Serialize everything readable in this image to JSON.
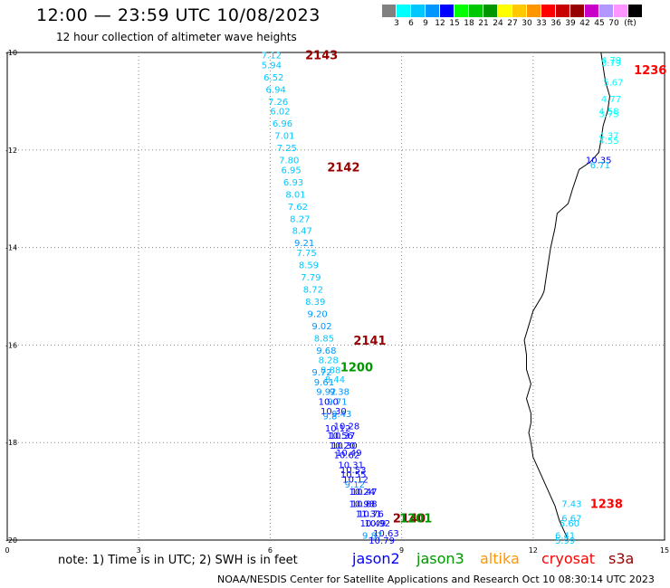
{
  "title": "12:00 — 23:59 UTC 10/08/2023",
  "subtitle": "12 hour collection of altimeter wave heights",
  "legend": {
    "colors": [
      "#808080",
      "#00ffff",
      "#00c8ff",
      "#0096ff",
      "#0000ff",
      "#00ff00",
      "#00c800",
      "#009600",
      "#ffff00",
      "#ffc800",
      "#ff9600",
      "#ff0000",
      "#c80000",
      "#960000",
      "#c800c8",
      "#b496ff",
      "#ff96ff",
      "#000000"
    ],
    "labels": [
      "3",
      "6",
      "9",
      "12",
      "15",
      "18",
      "21",
      "24",
      "27",
      "30",
      "33",
      "36",
      "39",
      "42",
      "45",
      "70",
      "(ft)"
    ]
  },
  "axes": {
    "x_ticks": [
      "0",
      "3",
      "6",
      "9",
      "12",
      "15"
    ],
    "y_ticks": [
      "-10",
      "-12",
      "-14",
      "-16",
      "-18",
      "-20"
    ]
  },
  "chart_data": {
    "type": "scatter",
    "x_range": [
      0,
      15
    ],
    "y_range": [
      -20,
      -10
    ],
    "grid": true,
    "track_labels": [
      {
        "text": "2143",
        "x": 6.8,
        "y": -10.05,
        "color": "#960000"
      },
      {
        "text": "2142",
        "x": 7.3,
        "y": -12.35,
        "color": "#960000"
      },
      {
        "text": "2141",
        "x": 7.9,
        "y": -15.9,
        "color": "#960000"
      },
      {
        "text": "1200",
        "x": 7.6,
        "y": -16.45,
        "color": "#009600"
      },
      {
        "text": "2140",
        "x": 8.8,
        "y": -19.55,
        "color": "#960000"
      },
      {
        "text": "1201",
        "x": 8.95,
        "y": -19.55,
        "color": "#009600"
      },
      {
        "text": "1236",
        "x": 14.3,
        "y": -10.35,
        "color": "#ff0000"
      },
      {
        "text": "1238",
        "x": 13.3,
        "y": -19.25,
        "color": "#ff0000"
      }
    ],
    "points": [
      {
        "x": 5.8,
        "y": -10.05,
        "v": "7.12",
        "color": "#00c8ff"
      },
      {
        "x": 5.8,
        "y": -10.25,
        "v": "5.94",
        "color": "#00c8ff"
      },
      {
        "x": 5.85,
        "y": -10.5,
        "v": "6.52",
        "color": "#00c8ff"
      },
      {
        "x": 5.9,
        "y": -10.75,
        "v": "6.94",
        "color": "#00c8ff"
      },
      {
        "x": 5.95,
        "y": -11.0,
        "v": "7.26",
        "color": "#00c8ff"
      },
      {
        "x": 6.0,
        "y": -11.2,
        "v": "6.02",
        "color": "#00c8ff"
      },
      {
        "x": 6.05,
        "y": -11.45,
        "v": "6.96",
        "color": "#00c8ff"
      },
      {
        "x": 6.1,
        "y": -11.7,
        "v": "7.01",
        "color": "#00c8ff"
      },
      {
        "x": 6.15,
        "y": -11.95,
        "v": "7.25",
        "color": "#00c8ff"
      },
      {
        "x": 6.2,
        "y": -12.2,
        "v": "7.80",
        "color": "#00c8ff"
      },
      {
        "x": 6.25,
        "y": -12.4,
        "v": "6.95",
        "color": "#00c8ff"
      },
      {
        "x": 6.3,
        "y": -12.65,
        "v": "6.93",
        "color": "#00c8ff"
      },
      {
        "x": 6.35,
        "y": -12.9,
        "v": "8.01",
        "color": "#00c8ff"
      },
      {
        "x": 6.4,
        "y": -13.15,
        "v": "7.62",
        "color": "#00c8ff"
      },
      {
        "x": 6.45,
        "y": -13.4,
        "v": "8.27",
        "color": "#00c8ff"
      },
      {
        "x": 6.5,
        "y": -13.65,
        "v": "8.47",
        "color": "#00c8ff"
      },
      {
        "x": 6.55,
        "y": -13.9,
        "v": "9.21",
        "color": "#0096ff"
      },
      {
        "x": 6.6,
        "y": -14.1,
        "v": "7.75",
        "color": "#00c8ff"
      },
      {
        "x": 6.65,
        "y": -14.35,
        "v": "8.59",
        "color": "#00c8ff"
      },
      {
        "x": 6.7,
        "y": -14.6,
        "v": "7.79",
        "color": "#00c8ff"
      },
      {
        "x": 6.75,
        "y": -14.85,
        "v": "8.72",
        "color": "#00c8ff"
      },
      {
        "x": 6.8,
        "y": -15.1,
        "v": "8.39",
        "color": "#00c8ff"
      },
      {
        "x": 6.85,
        "y": -15.35,
        "v": "9.20",
        "color": "#0096ff"
      },
      {
        "x": 6.95,
        "y": -15.6,
        "v": "9.02",
        "color": "#0096ff"
      },
      {
        "x": 7.0,
        "y": -15.85,
        "v": "8.85",
        "color": "#00c8ff"
      },
      {
        "x": 7.05,
        "y": -16.1,
        "v": "9.68",
        "color": "#0096ff"
      },
      {
        "x": 7.1,
        "y": -16.3,
        "v": "8.28",
        "color": "#00c8ff"
      },
      {
        "x": 7.15,
        "y": -16.5,
        "v": "8.88",
        "color": "#00c8ff"
      },
      {
        "x": 6.95,
        "y": -16.55,
        "v": "9.72",
        "color": "#0096ff"
      },
      {
        "x": 7.25,
        "y": -16.7,
        "v": "8.44",
        "color": "#00c8ff"
      },
      {
        "x": 7.0,
        "y": -16.75,
        "v": "9.61",
        "color": "#0096ff"
      },
      {
        "x": 7.35,
        "y": -16.95,
        "v": "9.38",
        "color": "#0096ff"
      },
      {
        "x": 7.05,
        "y": -16.95,
        "v": "9.92",
        "color": "#0096ff"
      },
      {
        "x": 7.3,
        "y": -17.15,
        "v": "9.71",
        "color": "#0096ff"
      },
      {
        "x": 7.1,
        "y": -17.15,
        "v": "10.0",
        "color": "#0000ff"
      },
      {
        "x": 7.4,
        "y": -17.4,
        "v": "9.43",
        "color": "#0096ff"
      },
      {
        "x": 7.15,
        "y": -17.35,
        "v": "10.30",
        "color": "#0000ff"
      },
      {
        "x": 7.2,
        "y": -17.45,
        "v": "9.8",
        "color": "#0096ff"
      },
      {
        "x": 7.45,
        "y": -17.65,
        "v": "10.28",
        "color": "#0000ff"
      },
      {
        "x": 7.25,
        "y": -17.7,
        "v": "10.12",
        "color": "#0000ff"
      },
      {
        "x": 7.35,
        "y": -17.85,
        "v": "10.37",
        "color": "#0000ff"
      },
      {
        "x": 7.3,
        "y": -17.85,
        "v": "10.56",
        "color": "#0000ff"
      },
      {
        "x": 7.4,
        "y": -18.05,
        "v": "10.30",
        "color": "#0000ff"
      },
      {
        "x": 7.35,
        "y": -18.05,
        "v": "10.20",
        "color": "#0000ff"
      },
      {
        "x": 7.5,
        "y": -18.2,
        "v": "10.49",
        "color": "#0000ff"
      },
      {
        "x": 7.45,
        "y": -18.25,
        "v": "10.62",
        "color": "#0000ff"
      },
      {
        "x": 7.55,
        "y": -18.45,
        "v": "10.31",
        "color": "#0000ff"
      },
      {
        "x": 7.6,
        "y": -18.55,
        "v": "10.53",
        "color": "#0000ff"
      },
      {
        "x": 7.6,
        "y": -18.65,
        "v": "10.55",
        "color": "#0000ff"
      },
      {
        "x": 7.65,
        "y": -18.75,
        "v": "10.12",
        "color": "#0000ff"
      },
      {
        "x": 7.7,
        "y": -18.85,
        "v": "9.12",
        "color": "#0096ff"
      },
      {
        "x": 7.8,
        "y": -19.0,
        "v": "10.24",
        "color": "#0000ff"
      },
      {
        "x": 7.85,
        "y": -19.0,
        "v": "10.47",
        "color": "#0000ff"
      },
      {
        "x": 7.85,
        "y": -19.25,
        "v": "10.88",
        "color": "#0000ff"
      },
      {
        "x": 7.8,
        "y": -19.25,
        "v": "10.98",
        "color": "#0000ff"
      },
      {
        "x": 7.95,
        "y": -19.45,
        "v": "11.31",
        "color": "#0000ff"
      },
      {
        "x": 8.0,
        "y": -19.45,
        "v": "10.76",
        "color": "#0000ff"
      },
      {
        "x": 8.15,
        "y": -19.65,
        "v": "10.92",
        "color": "#0000ff"
      },
      {
        "x": 8.05,
        "y": -19.65,
        "v": "10.49",
        "color": "#0000ff"
      },
      {
        "x": 8.35,
        "y": -19.85,
        "v": "10.63",
        "color": "#0000ff"
      },
      {
        "x": 8.1,
        "y": -19.9,
        "v": "9.87",
        "color": "#0096ff"
      },
      {
        "x": 8.25,
        "y": -20.0,
        "v": "10.79",
        "color": "#0000ff"
      },
      {
        "x": 13.55,
        "y": -10.15,
        "v": "4.79",
        "color": "#00ffff"
      },
      {
        "x": 13.55,
        "y": -10.2,
        "v": "3.79",
        "color": "#00ffff"
      },
      {
        "x": 13.6,
        "y": -10.6,
        "v": "5.67",
        "color": "#00ffff"
      },
      {
        "x": 13.55,
        "y": -10.95,
        "v": "4.77",
        "color": "#00ffff"
      },
      {
        "x": 13.5,
        "y": -11.2,
        "v": "4.58",
        "color": "#00ffff"
      },
      {
        "x": 13.5,
        "y": -11.25,
        "v": "3.75",
        "color": "#00ffff"
      },
      {
        "x": 13.5,
        "y": -11.7,
        "v": "4.37",
        "color": "#00ffff"
      },
      {
        "x": 13.5,
        "y": -11.8,
        "v": "4.55",
        "color": "#00ffff"
      },
      {
        "x": 13.2,
        "y": -12.2,
        "v": "10.35",
        "color": "#0000ff"
      },
      {
        "x": 13.3,
        "y": -12.3,
        "v": "6.71",
        "color": "#00c8ff"
      },
      {
        "x": 12.65,
        "y": -19.25,
        "v": "7.43",
        "color": "#00c8ff"
      },
      {
        "x": 12.65,
        "y": -19.55,
        "v": "6.67",
        "color": "#00c8ff"
      },
      {
        "x": 12.6,
        "y": -19.65,
        "v": "5.60",
        "color": "#00c8ff"
      },
      {
        "x": 12.5,
        "y": -19.9,
        "v": "6.41",
        "color": "#00c8ff"
      },
      {
        "x": 12.5,
        "y": -20.0,
        "v": "5.99",
        "color": "#00c8ff"
      }
    ],
    "coastline": [
      [
        13.55,
        -10.0
      ],
      [
        13.6,
        -10.3
      ],
      [
        13.65,
        -10.6
      ],
      [
        13.75,
        -10.9
      ],
      [
        13.7,
        -11.2
      ],
      [
        13.6,
        -11.5
      ],
      [
        13.55,
        -11.8
      ],
      [
        13.5,
        -12.05
      ],
      [
        13.3,
        -12.25
      ],
      [
        13.05,
        -12.4
      ],
      [
        12.9,
        -12.8
      ],
      [
        12.8,
        -13.1
      ],
      [
        12.55,
        -13.3
      ],
      [
        12.5,
        -13.6
      ],
      [
        12.4,
        -14.0
      ],
      [
        12.35,
        -14.3
      ],
      [
        12.3,
        -14.6
      ],
      [
        12.25,
        -14.9
      ],
      [
        12.2,
        -15.0
      ],
      [
        12.0,
        -15.3
      ],
      [
        11.9,
        -15.6
      ],
      [
        11.8,
        -15.9
      ],
      [
        11.85,
        -16.2
      ],
      [
        11.85,
        -16.5
      ],
      [
        11.95,
        -16.8
      ],
      [
        11.85,
        -17.1
      ],
      [
        11.95,
        -17.4
      ],
      [
        11.95,
        -17.6
      ],
      [
        11.9,
        -17.8
      ],
      [
        11.95,
        -18.0
      ],
      [
        12.0,
        -18.3
      ],
      [
        12.2,
        -18.7
      ],
      [
        12.35,
        -19.0
      ],
      [
        12.5,
        -19.3
      ],
      [
        12.6,
        -19.6
      ],
      [
        12.75,
        -19.9
      ],
      [
        12.8,
        -20.0
      ]
    ]
  },
  "note": "note: 1) Time is in UTC; 2) SWH is in feet",
  "satellites": [
    {
      "name": "jason2",
      "color": "#0000ff"
    },
    {
      "name": "jason3",
      "color": "#009600"
    },
    {
      "name": "altika",
      "color": "#ff9600"
    },
    {
      "name": "cryosat",
      "color": "#ff0000"
    },
    {
      "name": "s3a",
      "color": "#960000"
    }
  ],
  "footer": "NOAA/NESDIS Center for Satellite Applications and Research   Oct 10 08:30:14 UTC 2023"
}
